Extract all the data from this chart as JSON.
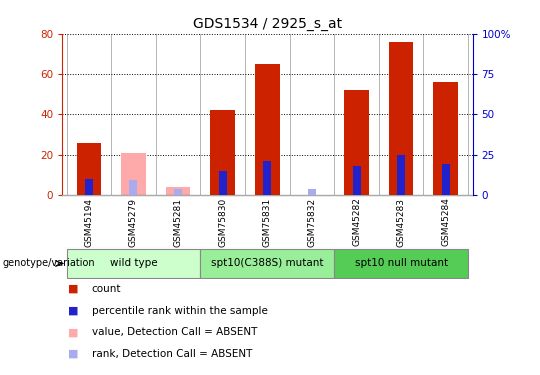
{
  "title": "GDS1534 / 2925_s_at",
  "samples": [
    "GSM45194",
    "GSM45279",
    "GSM45281",
    "GSM75830",
    "GSM75831",
    "GSM75832",
    "GSM45282",
    "GSM45283",
    "GSM45284"
  ],
  "count_values": [
    26,
    0,
    0,
    42,
    65,
    0,
    52,
    76,
    56
  ],
  "rank_values": [
    10,
    0,
    0,
    15,
    21,
    0,
    18,
    25,
    19
  ],
  "absent_count": [
    0,
    21,
    4,
    0,
    0,
    0,
    0,
    0,
    0
  ],
  "absent_rank": [
    0,
    9,
    4,
    0,
    0,
    4,
    0,
    0,
    0
  ],
  "is_absent": [
    false,
    true,
    true,
    false,
    false,
    true,
    false,
    false,
    false
  ],
  "groups": [
    {
      "label": "wild type",
      "start": 0,
      "end": 3,
      "color": "#ccffcc"
    },
    {
      "label": "spt10(C388S) mutant",
      "start": 3,
      "end": 6,
      "color": "#99ee99"
    },
    {
      "label": "spt10 null mutant",
      "start": 6,
      "end": 9,
      "color": "#55cc55"
    }
  ],
  "ylim_left": [
    0,
    80
  ],
  "ylim_right": [
    0,
    100
  ],
  "yticks_left": [
    0,
    20,
    40,
    60,
    80
  ],
  "yticks_right": [
    0,
    25,
    50,
    75,
    100
  ],
  "left_color": "#cc2200",
  "right_color": "#0000cc",
  "bar_color_present": "#cc2200",
  "bar_color_absent": "#ffaaaa",
  "rank_color_present": "#2222cc",
  "rank_color_absent": "#aaaaee",
  "background_color": "#ffffff",
  "plot_bg_color": "#ffffff",
  "sample_label_bg": "#cccccc",
  "divider_color": "#aaaaaa",
  "label_color_left": "#cc2200",
  "label_color_right": "#0000cc",
  "legend_items": [
    {
      "color": "#cc2200",
      "label": "count"
    },
    {
      "color": "#2222cc",
      "label": "percentile rank within the sample"
    },
    {
      "color": "#ffaaaa",
      "label": "value, Detection Call = ABSENT"
    },
    {
      "color": "#aaaaee",
      "label": "rank, Detection Call = ABSENT"
    }
  ]
}
